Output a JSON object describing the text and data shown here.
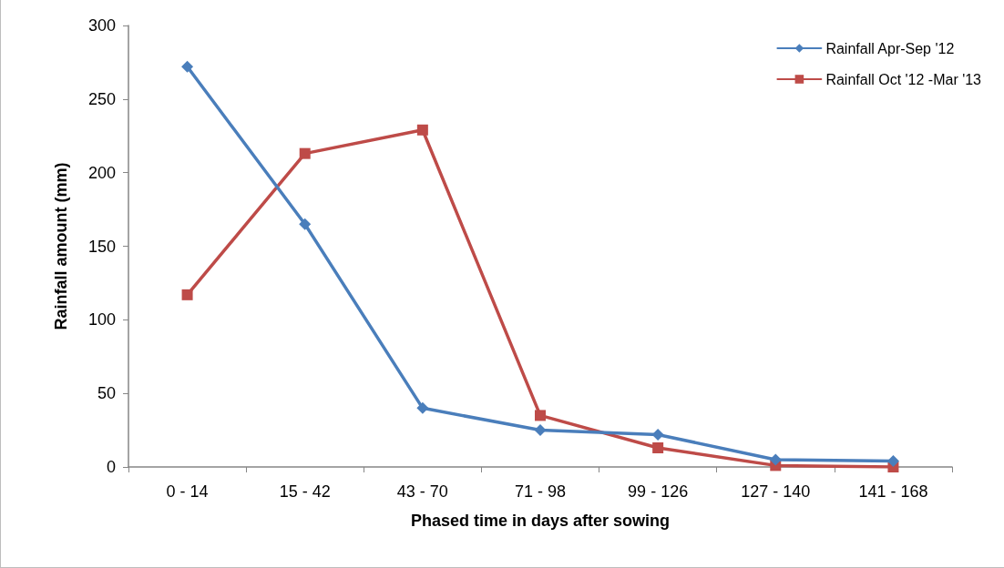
{
  "chart_data": {
    "type": "line",
    "xlabel": "Phased time in days after sowing",
    "ylabel": "Rainfall amount (mm)",
    "categories": [
      "0 - 14",
      "15 - 42",
      "43 - 70",
      "71 - 98",
      "99 - 126",
      "127 - 140",
      "141 - 168"
    ],
    "series": [
      {
        "name": "Rainfall Apr-Sep '12",
        "color": "#4a7ebb",
        "marker": "diamond",
        "values": [
          272,
          165,
          40,
          25,
          22,
          5,
          4
        ]
      },
      {
        "name": "Rainfall Oct '12 -Mar '13",
        "color": "#be4b48",
        "marker": "square",
        "values": [
          117,
          213,
          229,
          35,
          13,
          1,
          0
        ]
      }
    ],
    "ylim": [
      0,
      300
    ],
    "yticks": [
      0,
      50,
      100,
      150,
      200,
      250,
      300
    ],
    "grid": false,
    "legend": "top right",
    "line_style": "solid"
  }
}
